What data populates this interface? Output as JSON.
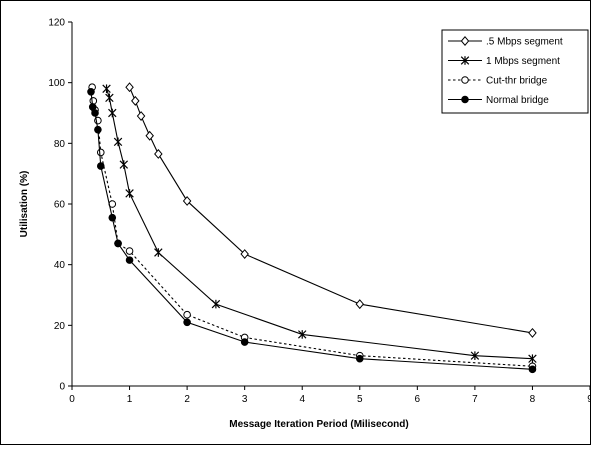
{
  "chart_data": {
    "type": "line",
    "title": "",
    "xlabel": "Message Iteration Period (Milisecond)",
    "ylabel": "Utilisation (%)",
    "xlim": [
      0,
      9
    ],
    "ylim": [
      0,
      120
    ],
    "xticks": [
      "0",
      "1",
      "2",
      "3",
      "4",
      "5",
      "6",
      "7",
      "8",
      "9"
    ],
    "yticks": [
      "0",
      "20",
      "40",
      "60",
      "80",
      "100",
      "120"
    ],
    "grid": false,
    "legend_position": "top-right",
    "series": [
      {
        "name": ".5 Mbps segment",
        "marker": "diamond-open",
        "line_style": "solid",
        "color": "#000000",
        "x": [
          1.0,
          1.1,
          1.2,
          1.35,
          1.5,
          2.0,
          3.0,
          5.0,
          8.0
        ],
        "y": [
          98.5,
          94,
          89,
          82.5,
          76.5,
          61,
          43.5,
          27,
          17.5
        ]
      },
      {
        "name": "1 Mbps segment",
        "marker": "asterisk",
        "line_style": "solid",
        "color": "#000000",
        "x": [
          0.6,
          0.65,
          0.7,
          0.8,
          0.9,
          1.0,
          1.5,
          2.5,
          4.0,
          7.0,
          8.0
        ],
        "y": [
          98,
          95,
          90,
          80.5,
          73,
          63.5,
          44,
          27,
          17,
          10,
          9
        ]
      },
      {
        "name": "Cut-thr bridge",
        "marker": "circle-open",
        "line_style": "dotted",
        "color": "#000000",
        "x": [
          0.35,
          0.37,
          0.4,
          0.45,
          0.5,
          0.7,
          0.8,
          1.0,
          2.0,
          3.0,
          5.0,
          8.0
        ],
        "y": [
          98.5,
          94,
          91,
          87.5,
          77,
          60,
          47,
          44.5,
          23.5,
          16,
          10,
          6.5
        ]
      },
      {
        "name": "Normal bridge",
        "marker": "circle-filled",
        "line_style": "solid",
        "color": "#000000",
        "x": [
          0.33,
          0.36,
          0.4,
          0.45,
          0.5,
          0.7,
          0.8,
          1.0,
          2.0,
          3.0,
          5.0,
          8.0
        ],
        "y": [
          97,
          92,
          90,
          84.5,
          72.5,
          55.5,
          47,
          41.5,
          21,
          14.5,
          9,
          5.5
        ]
      }
    ]
  }
}
